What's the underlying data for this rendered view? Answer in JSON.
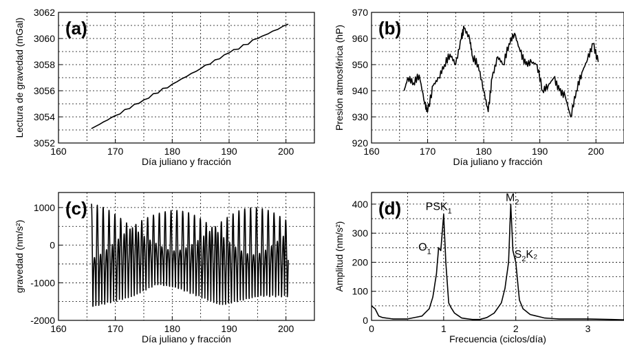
{
  "chart_data": [
    {
      "id": "a",
      "type": "line",
      "panel_label": "(a)",
      "title": "",
      "xlabel": "Día juliano y fracción",
      "ylabel": "Lectura de gravedad (mGal)",
      "xlim": [
        160,
        205
      ],
      "ylim": [
        3052,
        3062
      ],
      "xticks": [
        160,
        170,
        180,
        190,
        200
      ],
      "yticks": [
        3052,
        3054,
        3056,
        3058,
        3060,
        3062
      ],
      "grid": true,
      "series": [
        {
          "x": [
            165.8,
            170,
            175,
            180,
            185,
            190,
            195,
            200.4
          ],
          "y": [
            3053.1,
            3054.1,
            3055.3,
            3056.5,
            3057.7,
            3058.9,
            3060.0,
            3061.1
          ]
        }
      ]
    },
    {
      "id": "b",
      "type": "line",
      "panel_label": "(b)",
      "title": "",
      "xlabel": "Día juliano y fracción",
      "ylabel": "Presión atmosférica (hP)",
      "xlim": [
        160,
        205
      ],
      "ylim": [
        920,
        970
      ],
      "xticks": [
        160,
        170,
        180,
        190,
        200
      ],
      "yticks": [
        920,
        930,
        940,
        950,
        960,
        970
      ],
      "grid": true,
      "series": [
        {
          "x": [
            165.8,
            166.5,
            167.5,
            168.5,
            169.5,
            170,
            171,
            172,
            173,
            174,
            175,
            176,
            176.5,
            177.5,
            178,
            179,
            180,
            180.8,
            181.5,
            182.5,
            183.5,
            184.5,
            185.5,
            186.5,
            187.5,
            188.5,
            189.5,
            190.5,
            191.5,
            192.5,
            193.5,
            194.5,
            195.5,
            196.5,
            197.5,
            198.5,
            199.5,
            200.4
          ],
          "y": [
            940,
            945,
            943,
            946,
            935,
            932,
            942,
            945,
            950,
            954,
            950,
            960,
            964,
            960,
            953,
            950,
            940,
            932,
            945,
            953,
            950,
            958,
            962,
            955,
            950,
            951,
            950,
            940,
            942,
            945,
            940,
            938,
            930,
            940,
            947,
            952,
            958,
            951
          ]
        }
      ]
    },
    {
      "id": "c",
      "type": "line",
      "panel_label": "(c)",
      "title": "",
      "xlabel": "Día juliano y fracción",
      "ylabel": "gravedad (nm/s²)",
      "xlim": [
        160,
        205
      ],
      "ylim": [
        -2000,
        1400
      ],
      "xticks": [
        160,
        170,
        180,
        190,
        200
      ],
      "yticks": [
        -2000,
        -1000,
        0,
        1000
      ],
      "grid": true,
      "series": [
        {
          "name": "",
          "x_range": [
            165.8,
            200.4
          ],
          "min_envelope": [
            -1800,
            -1100,
            -1600,
            -1400
          ],
          "max_envelope": [
            1100,
            900,
            1000,
            1000
          ]
        }
      ]
    },
    {
      "id": "d",
      "type": "line",
      "panel_label": "(d)",
      "title": "",
      "xlabel": "Frecuencia (ciclos/día)",
      "ylabel": "Amplitud (nm/s²)",
      "xlim": [
        0,
        3.5
      ],
      "ylim": [
        0,
        440
      ],
      "xticks": [
        0,
        1,
        2,
        3
      ],
      "yticks": [
        0,
        100,
        200,
        300,
        400
      ],
      "grid": true,
      "annotations": [
        {
          "main": "PSK",
          "sub": "1",
          "tail": "",
          "x": 0.75,
          "y": 380
        },
        {
          "main": "O",
          "sub": "1",
          "tail": "",
          "x": 0.65,
          "y": 240
        },
        {
          "main": "M",
          "sub": "2",
          "tail": "",
          "x": 1.86,
          "y": 410
        },
        {
          "main": "S",
          "sub": "2",
          "tail": "K₂",
          "x": 1.98,
          "y": 215
        }
      ],
      "series": [
        {
          "x": [
            0,
            0.05,
            0.1,
            0.15,
            0.2,
            0.3,
            0.5,
            0.7,
            0.8,
            0.85,
            0.9,
            0.93,
            0.96,
            1.0,
            1.03,
            1.07,
            1.1,
            1.15,
            1.25,
            1.4,
            1.5,
            1.6,
            1.7,
            1.8,
            1.85,
            1.9,
            1.93,
            1.96,
            2.0,
            2.05,
            2.1,
            2.2,
            2.4,
            2.6,
            3.0,
            3.5
          ],
          "y": [
            50,
            40,
            15,
            10,
            8,
            5,
            5,
            15,
            40,
            80,
            160,
            250,
            240,
            365,
            200,
            60,
            45,
            25,
            8,
            3,
            3,
            10,
            25,
            60,
            110,
            200,
            400,
            240,
            200,
            70,
            40,
            20,
            8,
            5,
            5,
            2
          ]
        }
      ]
    }
  ]
}
